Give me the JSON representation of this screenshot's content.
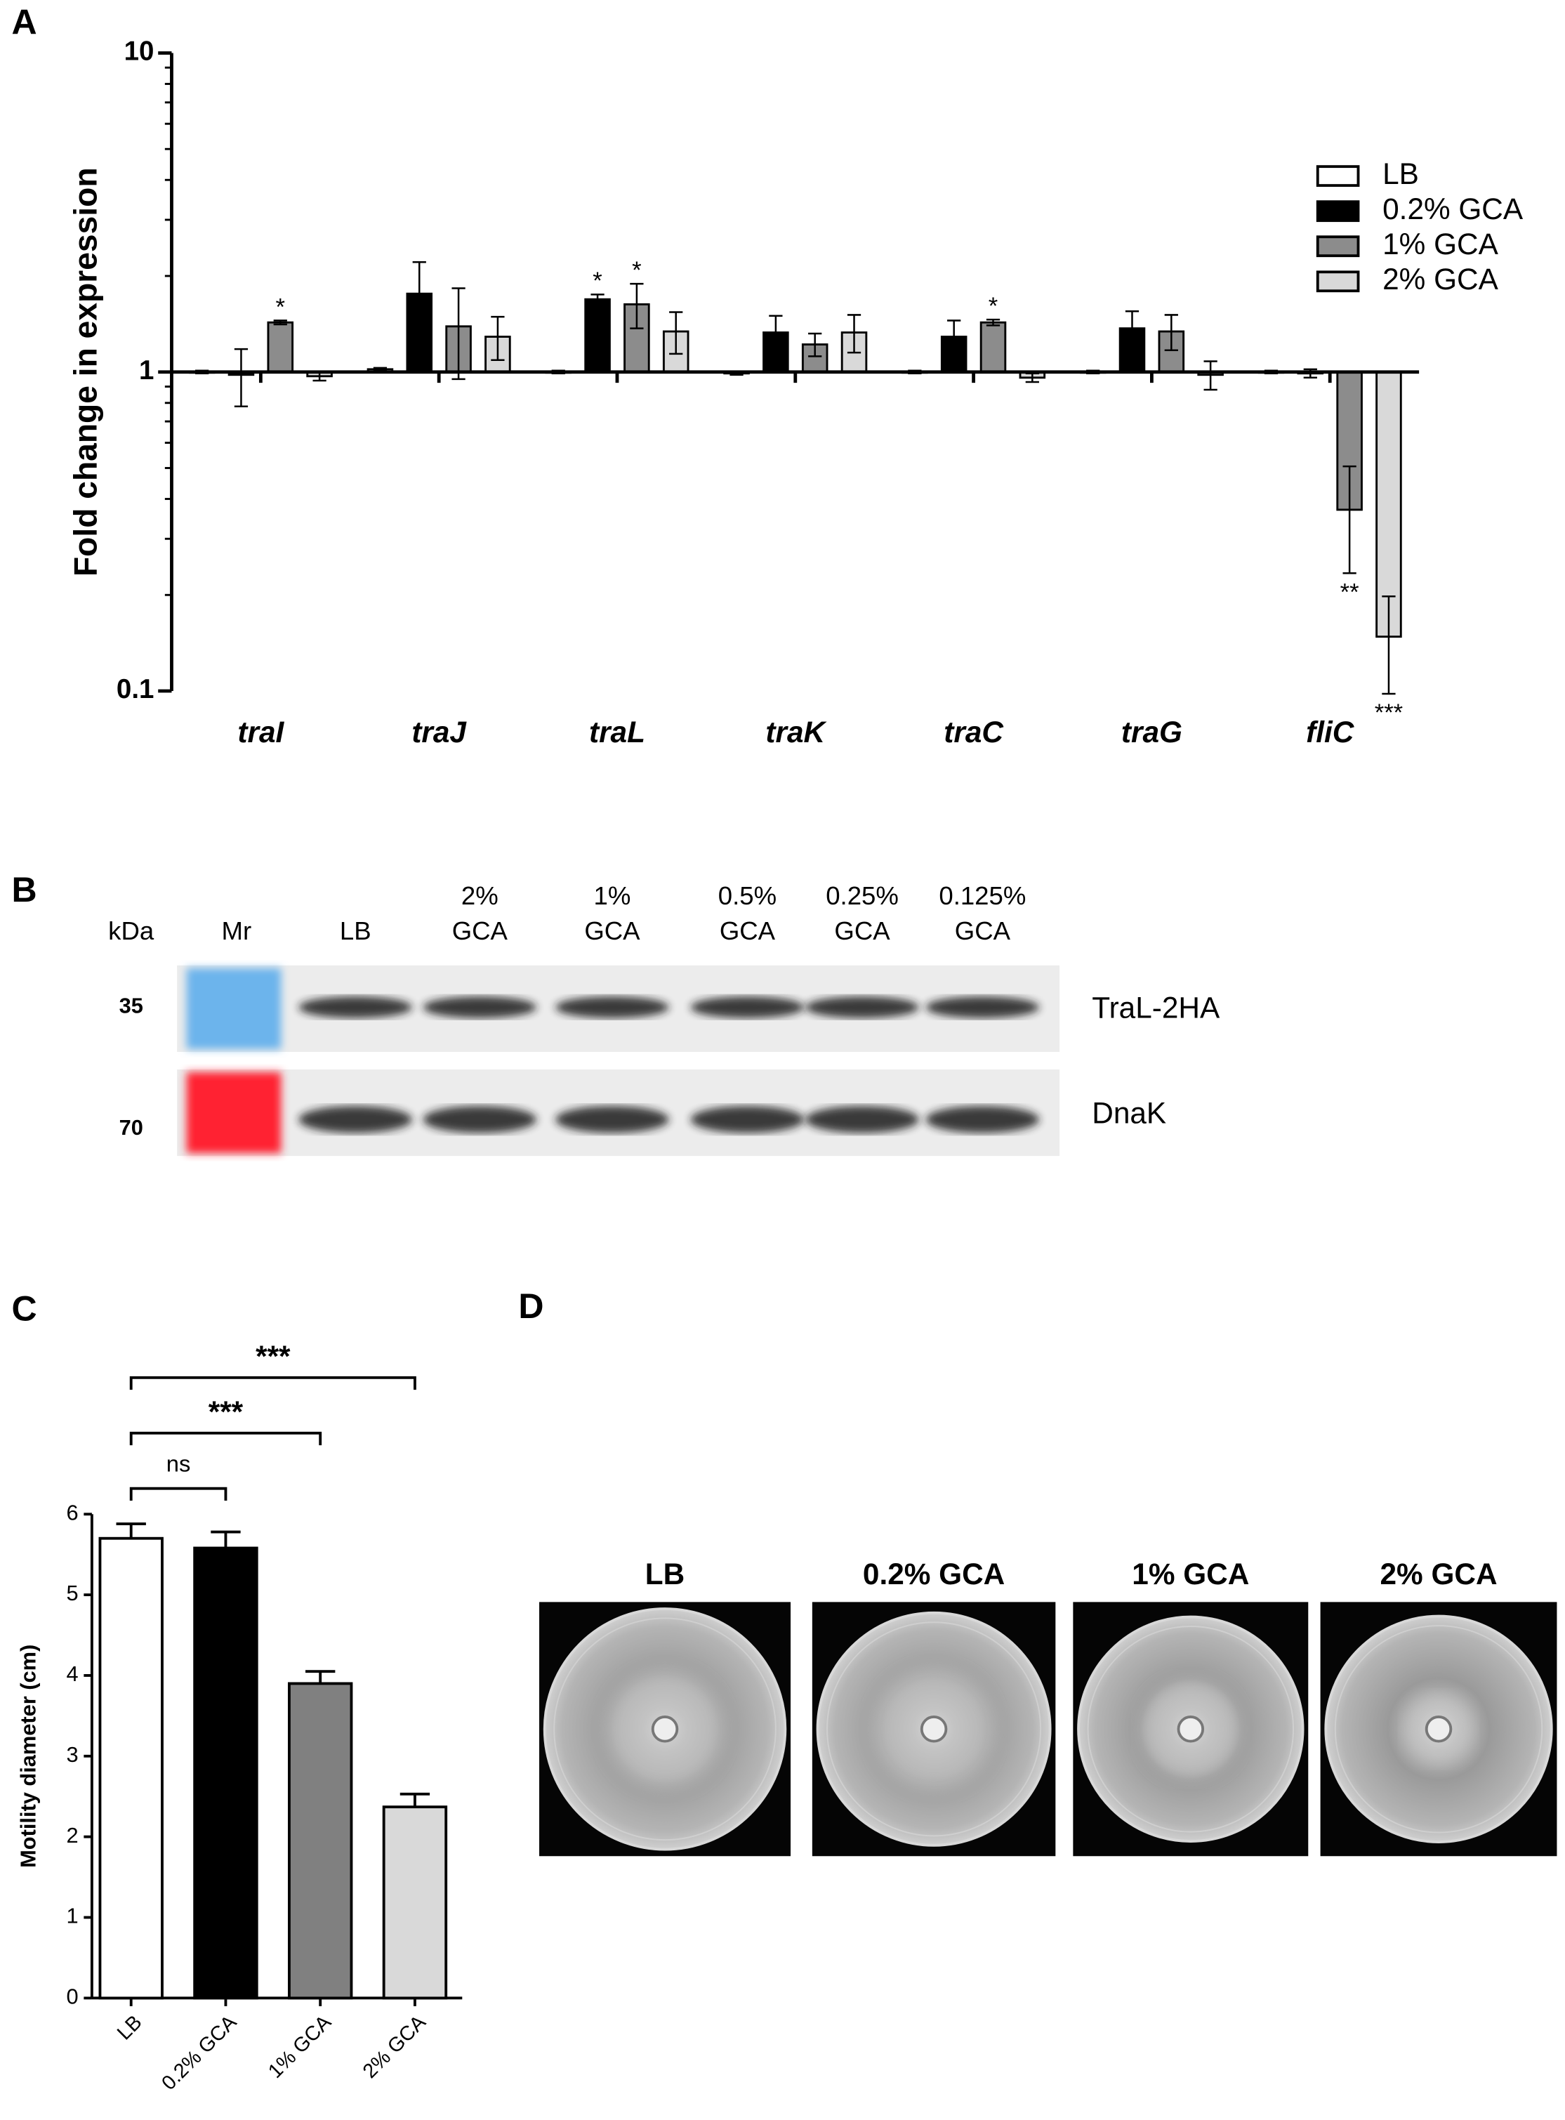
{
  "panel_labels": [
    "A",
    "B",
    "C",
    "D"
  ],
  "chart_data": [
    {
      "type": "bar",
      "ylabel": "Fold change in expression",
      "log_scale": true,
      "ylim": [
        0.1,
        10
      ],
      "yticks": [
        0.1,
        1,
        10
      ],
      "baseline": 1,
      "legend": "right",
      "categories": [
        "traI",
        "traJ",
        "traL",
        "traK",
        "traC",
        "traG",
        "fliC"
      ],
      "series": [
        {
          "name": "LB",
          "color": "#ffffff",
          "values": [
            1.0,
            1.02,
            1.0,
            0.99,
            1.0,
            1.0,
            1.0
          ],
          "errors": [
            0.01,
            0.01,
            0.01,
            0.01,
            0.01,
            0.01,
            0.01
          ],
          "significance": [
            null,
            null,
            null,
            null,
            null,
            null,
            null
          ]
        },
        {
          "name": "0.2% GCA",
          "color": "#000000",
          "values": [
            0.98,
            1.76,
            1.69,
            1.33,
            1.29,
            1.37,
            0.99
          ],
          "errors": [
            0.2,
            0.45,
            0.06,
            0.17,
            0.16,
            0.18,
            0.03
          ],
          "significance": [
            null,
            null,
            "*",
            null,
            null,
            null,
            null
          ]
        },
        {
          "name": "1% GCA",
          "color": "#8c8c8c",
          "values": [
            1.43,
            1.39,
            1.63,
            1.22,
            1.43,
            1.34,
            0.37
          ],
          "errors": [
            0.02,
            0.44,
            0.26,
            0.1,
            0.03,
            0.17,
            0.136
          ],
          "significance": [
            "*",
            null,
            "*",
            null,
            "*",
            null,
            "**"
          ]
        },
        {
          "name": "2% GCA",
          "color": "#d9d9d9",
          "values": [
            0.97,
            1.29,
            1.34,
            1.33,
            0.96,
            0.98,
            0.148
          ],
          "errors": [
            0.03,
            0.2,
            0.2,
            0.18,
            0.03,
            0.1,
            0.05
          ],
          "significance": [
            null,
            null,
            null,
            null,
            null,
            null,
            "***"
          ]
        }
      ]
    },
    {
      "type": "bar",
      "ylabel": "Motility diameter (cm)",
      "ylim": [
        0,
        6
      ],
      "yticks": [
        0,
        1,
        2,
        3,
        4,
        5,
        6
      ],
      "categories": [
        "LB",
        "0.2% GCA",
        "1% GCA",
        "2% GCA"
      ],
      "values": [
        5.7,
        5.58,
        3.9,
        2.37
      ],
      "errors": [
        0.18,
        0.2,
        0.15,
        0.16
      ],
      "colors": [
        "#ffffff",
        "#000000",
        "#808080",
        "#d9d9d9"
      ],
      "comparisons": [
        {
          "from": "LB",
          "to": "0.2% GCA",
          "label": "ns"
        },
        {
          "from": "LB",
          "to": "1% GCA",
          "label": "***"
        },
        {
          "from": "LB",
          "to": "2% GCA",
          "label": "***"
        }
      ]
    }
  ],
  "blot": {
    "unit": "kDa",
    "marker_lane": "Mr",
    "lanes": [
      [
        "LB"
      ],
      [
        "2%",
        "GCA"
      ],
      [
        "1%",
        "GCA"
      ],
      [
        "0.5%",
        "GCA"
      ],
      [
        "0.25%",
        "GCA"
      ],
      [
        "0.125%",
        "GCA"
      ]
    ],
    "rows": [
      {
        "marker": "35",
        "band": "TraL-2HA"
      },
      {
        "marker": "70",
        "band": "DnaK"
      }
    ]
  },
  "plates": {
    "labels": [
      "LB",
      "0.2% GCA",
      "1% GCA",
      "2% GCA"
    ]
  }
}
